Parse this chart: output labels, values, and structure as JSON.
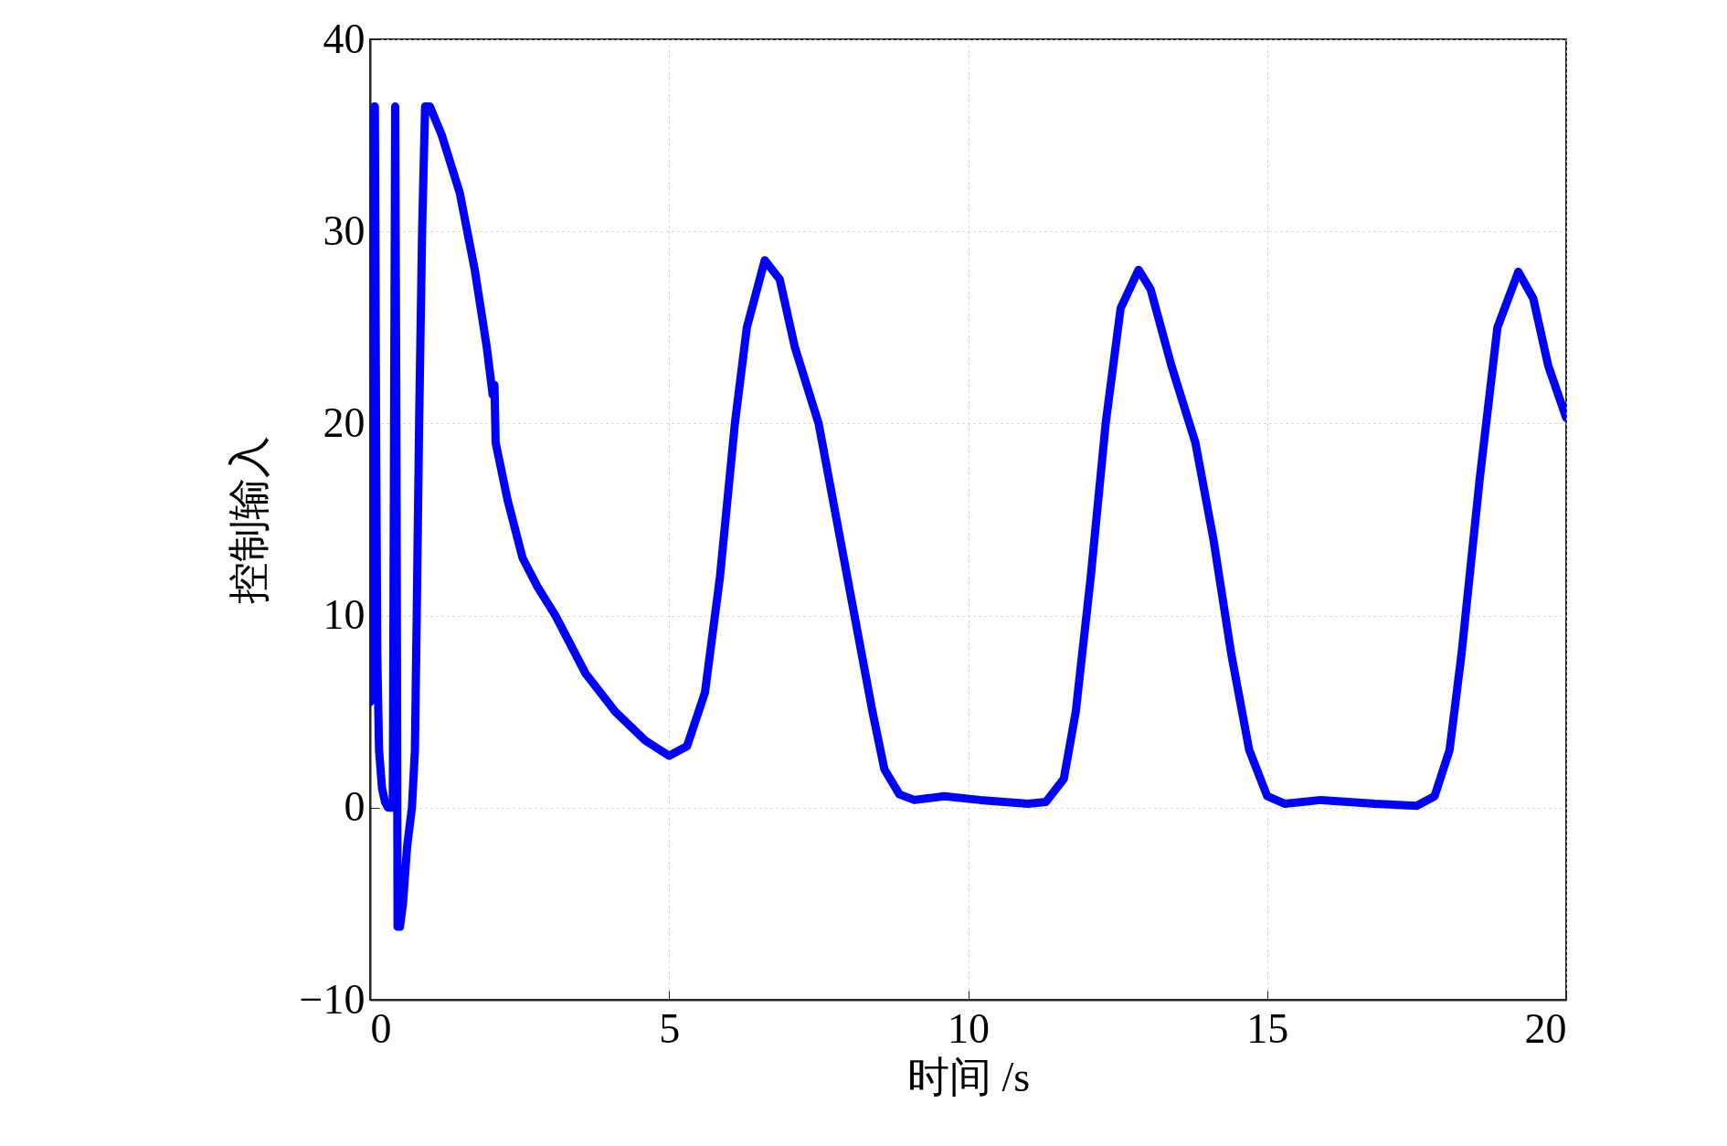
{
  "chart_data": {
    "type": "line",
    "xlabel": "时间 /s",
    "ylabel": "控制输入",
    "xlim": [
      0,
      20
    ],
    "xticks": [
      0,
      5,
      10,
      15,
      20
    ],
    "ylim": [
      -10,
      40
    ],
    "yticks": [
      {
        "value": -10,
        "label": "−10"
      },
      0,
      10,
      20,
      30,
      40
    ],
    "grid": true,
    "line_style": "solid",
    "series": [
      {
        "color": "#0000ff",
        "x": [
          0.0,
          0.05,
          0.07,
          0.08,
          0.1,
          0.12,
          0.15,
          0.2,
          0.25,
          0.3,
          0.38,
          0.42,
          0.44,
          0.46,
          0.5,
          0.55,
          0.62,
          0.7,
          0.75,
          0.78,
          0.82,
          0.87,
          0.92,
          1.0,
          1.2,
          1.5,
          1.75,
          1.95,
          2.05,
          2.08,
          2.1,
          2.3,
          2.55,
          2.8,
          3.1,
          3.6,
          4.1,
          4.6,
          5.0,
          5.3,
          5.6,
          5.85,
          6.1,
          6.3,
          6.6,
          6.85,
          7.1,
          7.5,
          7.8,
          8.1,
          8.4,
          8.6,
          8.85,
          9.1,
          9.6,
          10.2,
          11.0,
          11.3,
          11.6,
          11.8,
          12.05,
          12.3,
          12.55,
          12.85,
          13.05,
          13.4,
          13.8,
          14.1,
          14.4,
          14.7,
          15.0,
          15.3,
          15.9,
          16.8,
          17.5,
          17.8,
          18.05,
          18.25,
          18.55,
          18.85,
          19.2,
          19.45,
          19.7,
          20.0
        ],
        "values": [
          5.5,
          20,
          36.5,
          36.5,
          20,
          8,
          3,
          1,
          0.3,
          0,
          0,
          36.5,
          20,
          -6.2,
          -6.2,
          -5,
          -2,
          0,
          3,
          10,
          20,
          30,
          36.5,
          36.5,
          35,
          32,
          28,
          24,
          21.5,
          22,
          19,
          16,
          13,
          11.5,
          10,
          7,
          5,
          3.5,
          2.7,
          3.2,
          6,
          12,
          20,
          25,
          28.5,
          27.5,
          24,
          20,
          15,
          10,
          5,
          2,
          0.7,
          0.4,
          0.6,
          0.4,
          0.2,
          0.3,
          1.5,
          5,
          12,
          20,
          26,
          28,
          27,
          23,
          19,
          14,
          8,
          3,
          0.6,
          0.2,
          0.4,
          0.2,
          0.1,
          0.6,
          3,
          8,
          17,
          25,
          27.9,
          26.5,
          23,
          20.3
        ]
      }
    ]
  }
}
